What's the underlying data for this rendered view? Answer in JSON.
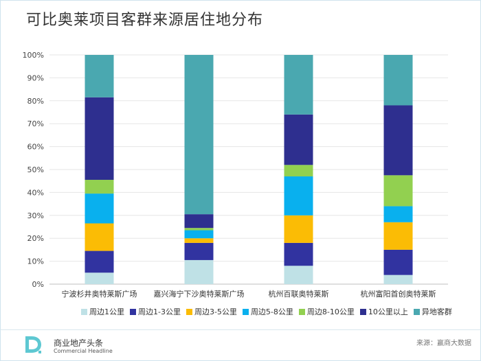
{
  "title": "可比奥莱项目客群来源居住地分布",
  "footer": {
    "brand_cn": "商业地产头条",
    "brand_en": "Commercial Headline",
    "source": "来源：赢商大数据"
  },
  "chart_data": {
    "type": "bar",
    "stacked": true,
    "title": "可比奥莱项目客群来源居住地分布",
    "ylim": [
      0,
      100
    ],
    "yticks": [
      "0%",
      "10%",
      "20%",
      "30%",
      "40%",
      "50%",
      "60%",
      "70%",
      "80%",
      "90%",
      "100%"
    ],
    "grid": true,
    "legend_position": "bottom",
    "categories": [
      "宁波杉井奥特莱斯广场",
      "嘉兴海宁下沙奥特莱斯广场",
      "杭州百联奥特莱斯",
      "杭州富阳首创奥特莱斯"
    ],
    "series": [
      {
        "name": "周边1公里",
        "color": "#bfe1e6",
        "values": [
          5,
          10.5,
          8,
          4
        ]
      },
      {
        "name": "周边1-3公里",
        "color": "#3133a0",
        "values": [
          9.5,
          7.5,
          10,
          11
        ]
      },
      {
        "name": "周边3-5公里",
        "color": "#fbbc05",
        "values": [
          12,
          2,
          12,
          12
        ]
      },
      {
        "name": "周边5-8公里",
        "color": "#09b0ee",
        "values": [
          13,
          3.5,
          17,
          7
        ]
      },
      {
        "name": "周边8-10公里",
        "color": "#92d050",
        "values": [
          6,
          1,
          5,
          13.5
        ]
      },
      {
        "name": "10公里以上",
        "color": "#2e2f8f",
        "values": [
          36,
          6,
          22,
          30.5
        ]
      },
      {
        "name": "异地客群",
        "color": "#4aa8b0",
        "values": [
          18.5,
          69.5,
          26,
          22
        ]
      }
    ]
  }
}
